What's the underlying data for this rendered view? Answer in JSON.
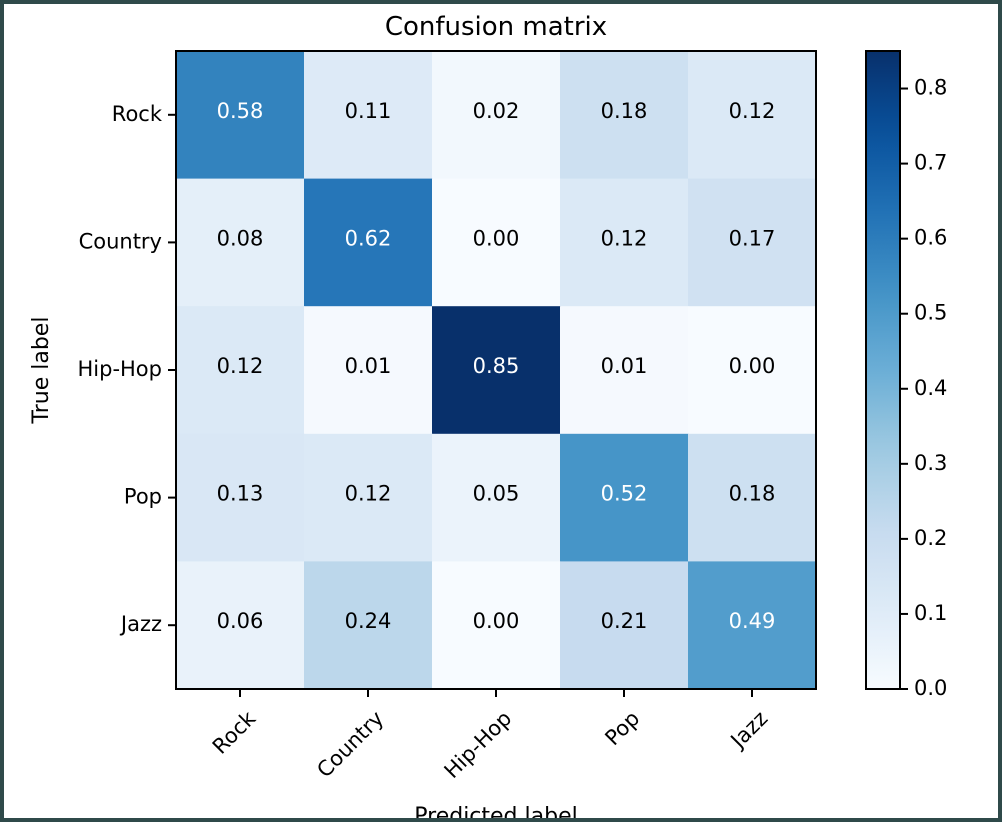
{
  "chart_data": {
    "type": "heatmap",
    "title": "Confusion matrix",
    "xlabel": "Predicted label",
    "ylabel": "True label",
    "rows": [
      "Rock",
      "Country",
      "Hip-Hop",
      "Pop",
      "Jazz"
    ],
    "columns": [
      "Rock",
      "Country",
      "Hip-Hop",
      "Pop",
      "Jazz"
    ],
    "values": [
      [
        0.58,
        0.11,
        0.02,
        0.18,
        0.12
      ],
      [
        0.08,
        0.62,
        0.0,
        0.12,
        0.17
      ],
      [
        0.12,
        0.01,
        0.85,
        0.01,
        0.0
      ],
      [
        0.13,
        0.12,
        0.05,
        0.52,
        0.18
      ],
      [
        0.06,
        0.24,
        0.0,
        0.21,
        0.49
      ]
    ],
    "cell_labels": [
      [
        "0.58",
        "0.11",
        "0.02",
        "0.18",
        "0.12"
      ],
      [
        "0.08",
        "0.62",
        "0.00",
        "0.12",
        "0.17"
      ],
      [
        "0.12",
        "0.01",
        "0.85",
        "0.01",
        "0.00"
      ],
      [
        "0.13",
        "0.12",
        "0.05",
        "0.52",
        "0.18"
      ],
      [
        "0.06",
        "0.24",
        "0.00",
        "0.21",
        "0.49"
      ]
    ],
    "colorbar": {
      "range": [
        0,
        0.85
      ],
      "ticks": [
        "0.0",
        "0.1",
        "0.2",
        "0.3",
        "0.4",
        "0.5",
        "0.6",
        "0.7",
        "0.8"
      ],
      "colormap": "Blues"
    },
    "grid": false,
    "legend": "none"
  }
}
